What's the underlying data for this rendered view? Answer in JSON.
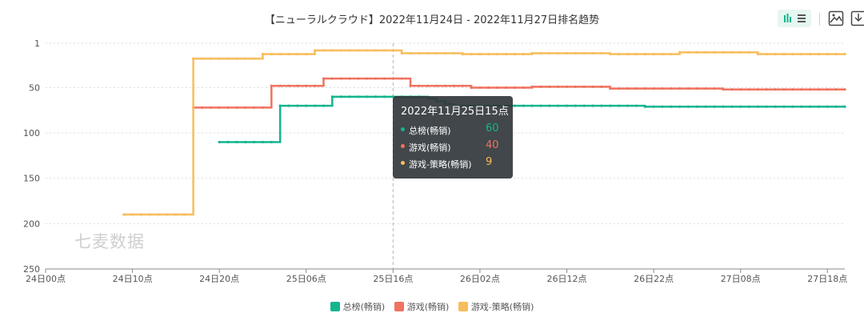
{
  "chart_data": {
    "type": "line",
    "title": "【ニューラルクラウド】2022年11月24日 - 2022年11月27日排名趋势",
    "ylim": [
      1,
      250
    ],
    "y_inverted": true,
    "y_ticks": [
      "1",
      "50",
      "100",
      "150",
      "200",
      "250"
    ],
    "y_tick_values": [
      1,
      50,
      100,
      150,
      200,
      250
    ],
    "x_ticks": [
      "24日00点",
      "24日10点",
      "24日20点",
      "25日06点",
      "25日16点",
      "26日02点",
      "26日12点",
      "26日22点",
      "27日08点",
      "27日18点"
    ],
    "x_tick_hours": [
      0,
      10,
      20,
      30,
      40,
      50,
      60,
      70,
      80,
      90
    ],
    "x_unit": "hour",
    "x_max_hour": 92,
    "grid": true,
    "legend_position": "bottom",
    "series": [
      {
        "name": "总榜(畅销)",
        "color": "#13b58f",
        "points": [
          [
            20,
            110
          ],
          [
            21,
            110
          ],
          [
            22,
            110
          ],
          [
            23,
            110
          ],
          [
            24,
            110
          ],
          [
            25,
            110
          ],
          [
            26,
            110
          ],
          [
            27,
            70
          ],
          [
            28,
            70
          ],
          [
            29,
            70
          ],
          [
            30,
            70
          ],
          [
            31,
            70
          ],
          [
            32,
            70
          ],
          [
            33,
            60
          ],
          [
            34,
            60
          ],
          [
            35,
            60
          ],
          [
            36,
            60
          ],
          [
            37,
            60
          ],
          [
            38,
            60
          ],
          [
            39,
            60
          ],
          [
            40,
            60
          ],
          [
            41,
            60
          ],
          [
            42,
            60
          ],
          [
            43,
            60
          ],
          [
            44,
            62
          ],
          [
            45,
            65
          ],
          [
            46,
            68
          ],
          [
            47,
            70
          ],
          [
            48,
            70
          ],
          [
            49,
            70
          ],
          [
            50,
            70
          ],
          [
            51,
            70
          ],
          [
            52,
            70
          ],
          [
            53,
            70
          ],
          [
            54,
            70
          ],
          [
            55,
            70
          ],
          [
            56,
            70
          ],
          [
            57,
            70
          ],
          [
            58,
            70
          ],
          [
            59,
            70
          ],
          [
            60,
            70
          ],
          [
            61,
            70
          ],
          [
            62,
            70
          ],
          [
            63,
            70
          ],
          [
            64,
            70
          ],
          [
            65,
            70
          ],
          [
            66,
            70
          ],
          [
            67,
            70
          ],
          [
            68,
            70
          ],
          [
            69,
            71
          ],
          [
            70,
            71
          ],
          [
            71,
            71
          ],
          [
            72,
            71
          ],
          [
            73,
            71
          ],
          [
            74,
            71
          ],
          [
            75,
            71
          ],
          [
            76,
            71
          ],
          [
            77,
            71
          ],
          [
            78,
            71
          ],
          [
            79,
            71
          ],
          [
            80,
            71
          ],
          [
            81,
            71
          ],
          [
            82,
            71
          ],
          [
            83,
            71
          ],
          [
            84,
            71
          ],
          [
            85,
            71
          ],
          [
            86,
            71
          ],
          [
            87,
            71
          ],
          [
            88,
            71
          ],
          [
            89,
            71
          ],
          [
            90,
            71
          ],
          [
            91,
            71
          ],
          [
            92,
            71
          ]
        ]
      },
      {
        "name": "游戏(畅销)",
        "color": "#f0725f",
        "points": [
          [
            17,
            72
          ],
          [
            18,
            72
          ],
          [
            19,
            72
          ],
          [
            20,
            72
          ],
          [
            21,
            72
          ],
          [
            22,
            72
          ],
          [
            23,
            72
          ],
          [
            24,
            72
          ],
          [
            25,
            72
          ],
          [
            26,
            48
          ],
          [
            27,
            48
          ],
          [
            28,
            48
          ],
          [
            29,
            48
          ],
          [
            30,
            48
          ],
          [
            31,
            48
          ],
          [
            32,
            40
          ],
          [
            33,
            40
          ],
          [
            34,
            40
          ],
          [
            35,
            40
          ],
          [
            36,
            40
          ],
          [
            37,
            40
          ],
          [
            38,
            40
          ],
          [
            39,
            40
          ],
          [
            40,
            40
          ],
          [
            41,
            40
          ],
          [
            42,
            48
          ],
          [
            43,
            48
          ],
          [
            44,
            48
          ],
          [
            45,
            48
          ],
          [
            46,
            48
          ],
          [
            47,
            48
          ],
          [
            48,
            48
          ],
          [
            49,
            50
          ],
          [
            50,
            50
          ],
          [
            51,
            50
          ],
          [
            52,
            50
          ],
          [
            53,
            50
          ],
          [
            54,
            50
          ],
          [
            55,
            50
          ],
          [
            56,
            49
          ],
          [
            57,
            49
          ],
          [
            58,
            49
          ],
          [
            59,
            49
          ],
          [
            60,
            49
          ],
          [
            61,
            49
          ],
          [
            62,
            49
          ],
          [
            63,
            49
          ],
          [
            64,
            49
          ],
          [
            65,
            51
          ],
          [
            66,
            51
          ],
          [
            67,
            51
          ],
          [
            68,
            51
          ],
          [
            69,
            51
          ],
          [
            70,
            51
          ],
          [
            71,
            51
          ],
          [
            72,
            51
          ],
          [
            73,
            51
          ],
          [
            74,
            51
          ],
          [
            75,
            51
          ],
          [
            76,
            51
          ],
          [
            77,
            51
          ],
          [
            78,
            52
          ],
          [
            79,
            52
          ],
          [
            80,
            52
          ],
          [
            81,
            52
          ],
          [
            82,
            52
          ],
          [
            83,
            52
          ],
          [
            84,
            52
          ],
          [
            85,
            52
          ],
          [
            86,
            52
          ],
          [
            87,
            52
          ],
          [
            88,
            52
          ],
          [
            89,
            52
          ],
          [
            90,
            52
          ],
          [
            91,
            52
          ],
          [
            92,
            52
          ]
        ]
      },
      {
        "name": "游戏-策略(畅销)",
        "color": "#f7bd5c",
        "points": [
          [
            9,
            190
          ],
          [
            10,
            190
          ],
          [
            11,
            190
          ],
          [
            12,
            190
          ],
          [
            13,
            190
          ],
          [
            14,
            190
          ],
          [
            15,
            190
          ],
          [
            16,
            190
          ],
          [
            17,
            18
          ],
          [
            18,
            18
          ],
          [
            19,
            18
          ],
          [
            20,
            18
          ],
          [
            21,
            18
          ],
          [
            22,
            18
          ],
          [
            23,
            18
          ],
          [
            24,
            18
          ],
          [
            25,
            13
          ],
          [
            26,
            13
          ],
          [
            27,
            13
          ],
          [
            28,
            13
          ],
          [
            29,
            13
          ],
          [
            30,
            13
          ],
          [
            31,
            9
          ],
          [
            32,
            9
          ],
          [
            33,
            9
          ],
          [
            34,
            9
          ],
          [
            35,
            9
          ],
          [
            36,
            9
          ],
          [
            37,
            9
          ],
          [
            38,
            9
          ],
          [
            39,
            9
          ],
          [
            40,
            9
          ],
          [
            41,
            12
          ],
          [
            42,
            12
          ],
          [
            43,
            12
          ],
          [
            44,
            12
          ],
          [
            45,
            12
          ],
          [
            46,
            12
          ],
          [
            47,
            12
          ],
          [
            48,
            13
          ],
          [
            49,
            13
          ],
          [
            50,
            13
          ],
          [
            51,
            13
          ],
          [
            52,
            13
          ],
          [
            53,
            13
          ],
          [
            54,
            13
          ],
          [
            55,
            13
          ],
          [
            56,
            12
          ],
          [
            57,
            12
          ],
          [
            58,
            12
          ],
          [
            59,
            12
          ],
          [
            60,
            12
          ],
          [
            61,
            12
          ],
          [
            62,
            12
          ],
          [
            63,
            12
          ],
          [
            64,
            12
          ],
          [
            65,
            13
          ],
          [
            66,
            13
          ],
          [
            67,
            13
          ],
          [
            68,
            13
          ],
          [
            69,
            13
          ],
          [
            70,
            13
          ],
          [
            71,
            13
          ],
          [
            72,
            13
          ],
          [
            73,
            11
          ],
          [
            74,
            11
          ],
          [
            75,
            11
          ],
          [
            76,
            11
          ],
          [
            77,
            11
          ],
          [
            78,
            11
          ],
          [
            79,
            11
          ],
          [
            80,
            11
          ],
          [
            81,
            11
          ],
          [
            82,
            13
          ],
          [
            83,
            13
          ],
          [
            84,
            13
          ],
          [
            85,
            13
          ],
          [
            86,
            13
          ],
          [
            87,
            13
          ],
          [
            88,
            13
          ],
          [
            89,
            13
          ],
          [
            90,
            13
          ],
          [
            91,
            13
          ],
          [
            92,
            13
          ]
        ]
      }
    ],
    "crosshair_hour": 39
  },
  "tooltip": {
    "title": "2022年11月25日15点",
    "rows": [
      {
        "name": "总榜(畅销)",
        "value": "60",
        "color": "#13b58f"
      },
      {
        "name": "游戏(畅销)",
        "value": "40",
        "color": "#f0725f"
      },
      {
        "name": "游戏-策略(畅销)",
        "value": "9",
        "color": "#f7bd5c"
      }
    ]
  },
  "toolbar": {
    "icons": [
      "bar-list-toggle-icon",
      "save-image-icon",
      "download-icon"
    ],
    "active_color": "#13b58f"
  },
  "watermark": "七麦数据"
}
